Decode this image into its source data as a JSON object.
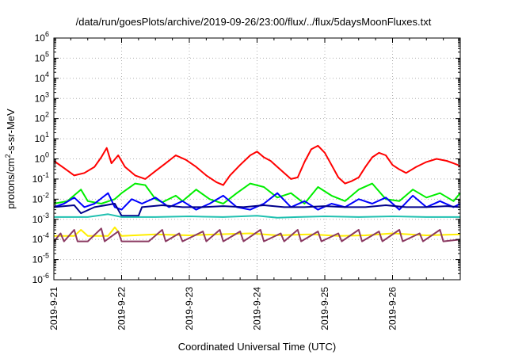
{
  "title": "/data/run/goesPlots/archive/2019-09-26/23:00/flux/../flux/5daysMoonFluxes.txt",
  "chart_data": {
    "type": "line",
    "title": "/data/run/goesPlots/archive/2019-09-26/23:00/flux/../flux/5daysMoonFluxes.txt",
    "xlabel": "Coordinated Universal Time (UTC)",
    "ylabel": {
      "prefix": "protons/cm",
      "sup": "2",
      "suffix": "-s-sr-MeV"
    },
    "y_scale": "log",
    "ylim": [
      1e-06,
      1000000.0
    ],
    "y_tick_exponents": [
      -6,
      -5,
      -4,
      -3,
      -2,
      -1,
      0,
      1,
      2,
      3,
      4,
      5,
      6
    ],
    "y_tick_base": "10",
    "xlim": [
      "2019-09-21",
      "2019-09-27"
    ],
    "x_tick_labels": [
      "2019-9-21",
      "2019-9-22",
      "2019-9-23",
      "2019-9-24",
      "2019-9-25",
      "2019-9-26"
    ],
    "grid": true,
    "series": [
      {
        "color": "#ff0000",
        "points": [
          [
            0.0,
            0.8
          ],
          [
            0.15,
            0.35
          ],
          [
            0.3,
            0.15
          ],
          [
            0.45,
            0.2
          ],
          [
            0.6,
            0.4
          ],
          [
            0.7,
            1.2
          ],
          [
            0.78,
            3.5
          ],
          [
            0.85,
            0.6
          ],
          [
            0.95,
            1.5
          ],
          [
            1.05,
            0.4
          ],
          [
            1.2,
            0.15
          ],
          [
            1.35,
            0.1
          ],
          [
            1.5,
            0.25
          ],
          [
            1.65,
            0.6
          ],
          [
            1.8,
            1.5
          ],
          [
            1.95,
            0.9
          ],
          [
            2.1,
            0.4
          ],
          [
            2.25,
            0.15
          ],
          [
            2.4,
            0.07
          ],
          [
            2.5,
            0.05
          ],
          [
            2.6,
            0.15
          ],
          [
            2.75,
            0.5
          ],
          [
            2.9,
            1.5
          ],
          [
            3.0,
            2.3
          ],
          [
            3.1,
            1.2
          ],
          [
            3.2,
            0.8
          ],
          [
            3.3,
            0.4
          ],
          [
            3.4,
            0.2
          ],
          [
            3.5,
            0.1
          ],
          [
            3.6,
            0.12
          ],
          [
            3.7,
            0.7
          ],
          [
            3.8,
            3.0
          ],
          [
            3.9,
            4.5
          ],
          [
            4.0,
            2.0
          ],
          [
            4.1,
            0.5
          ],
          [
            4.2,
            0.12
          ],
          [
            4.3,
            0.06
          ],
          [
            4.4,
            0.08
          ],
          [
            4.5,
            0.12
          ],
          [
            4.6,
            0.4
          ],
          [
            4.7,
            1.2
          ],
          [
            4.8,
            2.0
          ],
          [
            4.9,
            1.5
          ],
          [
            5.0,
            0.5
          ],
          [
            5.1,
            0.3
          ],
          [
            5.2,
            0.2
          ],
          [
            5.35,
            0.4
          ],
          [
            5.5,
            0.7
          ],
          [
            5.65,
            1.0
          ],
          [
            5.8,
            0.8
          ],
          [
            5.9,
            0.6
          ],
          [
            6.0,
            0.45
          ]
        ]
      },
      {
        "color": "#00ee00",
        "points": [
          [
            0.0,
            0.006
          ],
          [
            0.2,
            0.008
          ],
          [
            0.4,
            0.03
          ],
          [
            0.5,
            0.008
          ],
          [
            0.7,
            0.006
          ],
          [
            0.9,
            0.01
          ],
          [
            1.0,
            0.02
          ],
          [
            1.2,
            0.06
          ],
          [
            1.35,
            0.05
          ],
          [
            1.5,
            0.01
          ],
          [
            1.6,
            0.007
          ],
          [
            1.8,
            0.015
          ],
          [
            1.9,
            0.008
          ],
          [
            2.1,
            0.03
          ],
          [
            2.3,
            0.01
          ],
          [
            2.5,
            0.006
          ],
          [
            2.7,
            0.02
          ],
          [
            2.9,
            0.06
          ],
          [
            3.1,
            0.04
          ],
          [
            3.3,
            0.012
          ],
          [
            3.5,
            0.02
          ],
          [
            3.7,
            0.006
          ],
          [
            3.9,
            0.04
          ],
          [
            4.1,
            0.015
          ],
          [
            4.3,
            0.008
          ],
          [
            4.5,
            0.03
          ],
          [
            4.7,
            0.06
          ],
          [
            4.9,
            0.01
          ],
          [
            5.1,
            0.008
          ],
          [
            5.3,
            0.03
          ],
          [
            5.5,
            0.012
          ],
          [
            5.7,
            0.02
          ],
          [
            5.9,
            0.008
          ],
          [
            6.0,
            0.02
          ]
        ]
      },
      {
        "color": "#0000ff",
        "points": [
          [
            0.0,
            0.004
          ],
          [
            0.15,
            0.006
          ],
          [
            0.3,
            0.012
          ],
          [
            0.45,
            0.004
          ],
          [
            0.6,
            0.006
          ],
          [
            0.8,
            0.02
          ],
          [
            0.9,
            0.004
          ],
          [
            1.0,
            0.003
          ],
          [
            1.15,
            0.01
          ],
          [
            1.3,
            0.006
          ],
          [
            1.5,
            0.012
          ],
          [
            1.7,
            0.004
          ],
          [
            1.9,
            0.008
          ],
          [
            2.1,
            0.003
          ],
          [
            2.3,
            0.006
          ],
          [
            2.5,
            0.015
          ],
          [
            2.7,
            0.004
          ],
          [
            2.9,
            0.003
          ],
          [
            3.1,
            0.006
          ],
          [
            3.3,
            0.02
          ],
          [
            3.5,
            0.004
          ],
          [
            3.7,
            0.008
          ],
          [
            3.9,
            0.003
          ],
          [
            4.1,
            0.006
          ],
          [
            4.3,
            0.004
          ],
          [
            4.5,
            0.01
          ],
          [
            4.7,
            0.006
          ],
          [
            4.9,
            0.012
          ],
          [
            5.1,
            0.003
          ],
          [
            5.3,
            0.015
          ],
          [
            5.5,
            0.004
          ],
          [
            5.7,
            0.008
          ],
          [
            5.9,
            0.004
          ],
          [
            6.0,
            0.006
          ]
        ]
      },
      {
        "color": "#00008b",
        "points": [
          [
            0.0,
            0.004
          ],
          [
            0.3,
            0.005
          ],
          [
            0.4,
            0.002
          ],
          [
            0.6,
            0.004
          ],
          [
            0.9,
            0.006
          ],
          [
            1.0,
            0.0015
          ],
          [
            1.25,
            0.0015
          ],
          [
            1.3,
            0.004
          ],
          [
            1.6,
            0.005
          ],
          [
            1.9,
            0.004
          ],
          [
            2.2,
            0.004
          ],
          [
            2.5,
            0.0045
          ],
          [
            2.8,
            0.004
          ],
          [
            3.1,
            0.005
          ],
          [
            3.4,
            0.004
          ],
          [
            3.7,
            0.004
          ],
          [
            4.0,
            0.0045
          ],
          [
            4.3,
            0.004
          ],
          [
            4.6,
            0.004
          ],
          [
            4.9,
            0.005
          ],
          [
            5.2,
            0.004
          ],
          [
            5.5,
            0.004
          ],
          [
            5.8,
            0.0045
          ],
          [
            6.0,
            0.004
          ]
        ]
      },
      {
        "color": "#20c0b0",
        "points": [
          [
            0.0,
            0.0013
          ],
          [
            0.5,
            0.0013
          ],
          [
            0.8,
            0.0018
          ],
          [
            1.0,
            0.0013
          ],
          [
            1.5,
            0.0013
          ],
          [
            2.0,
            0.0014
          ],
          [
            2.5,
            0.0013
          ],
          [
            3.0,
            0.0015
          ],
          [
            3.3,
            0.0012
          ],
          [
            3.6,
            0.0013
          ],
          [
            4.0,
            0.0014
          ],
          [
            4.5,
            0.0013
          ],
          [
            5.0,
            0.0014
          ],
          [
            5.5,
            0.0013
          ],
          [
            6.0,
            0.0013
          ]
        ]
      },
      {
        "color": "#ffee00",
        "points": [
          [
            0.0,
            0.00015
          ],
          [
            0.3,
            0.00015
          ],
          [
            0.4,
            0.0003
          ],
          [
            0.5,
            0.00015
          ],
          [
            0.8,
            0.00015
          ],
          [
            0.9,
            0.0004
          ],
          [
            1.0,
            0.00015
          ],
          [
            1.5,
            0.00018
          ],
          [
            2.0,
            0.00016
          ],
          [
            2.4,
            0.00018
          ],
          [
            2.9,
            0.0002
          ],
          [
            3.3,
            0.00016
          ],
          [
            3.8,
            0.00018
          ],
          [
            4.2,
            0.00015
          ],
          [
            4.6,
            0.00016
          ],
          [
            5.0,
            0.0002
          ],
          [
            5.5,
            0.00016
          ],
          [
            6.0,
            0.00018
          ]
        ]
      },
      {
        "color": "#8b3a62",
        "points": [
          [
            0.0,
            8e-05
          ],
          [
            0.1,
            0.0002
          ],
          [
            0.15,
            8e-05
          ],
          [
            0.3,
            0.0003
          ],
          [
            0.35,
            8e-05
          ],
          [
            0.5,
            8e-05
          ],
          [
            0.7,
            0.00035
          ],
          [
            0.75,
            8e-05
          ],
          [
            0.95,
            0.00025
          ],
          [
            1.0,
            8e-05
          ],
          [
            1.4,
            8e-05
          ],
          [
            1.6,
            0.0003
          ],
          [
            1.65,
            8e-05
          ],
          [
            1.85,
            0.0002
          ],
          [
            1.9,
            8e-05
          ],
          [
            2.2,
            0.00025
          ],
          [
            2.25,
            8e-05
          ],
          [
            2.45,
            0.0003
          ],
          [
            2.5,
            8e-05
          ],
          [
            2.75,
            0.00025
          ],
          [
            2.8,
            8e-05
          ],
          [
            3.05,
            0.0003
          ],
          [
            3.1,
            8e-05
          ],
          [
            3.35,
            0.0002
          ],
          [
            3.4,
            8e-05
          ],
          [
            3.6,
            0.0003
          ],
          [
            3.65,
            8e-05
          ],
          [
            3.9,
            0.00025
          ],
          [
            3.95,
            8e-05
          ],
          [
            4.2,
            0.0002
          ],
          [
            4.25,
            8e-05
          ],
          [
            4.5,
            0.0003
          ],
          [
            4.55,
            8e-05
          ],
          [
            4.8,
            0.00025
          ],
          [
            4.85,
            8e-05
          ],
          [
            5.1,
            0.0003
          ],
          [
            5.15,
            8e-05
          ],
          [
            5.4,
            0.0002
          ],
          [
            5.45,
            8e-05
          ],
          [
            5.7,
            0.0003
          ],
          [
            5.75,
            8e-05
          ],
          [
            6.0,
            0.0001
          ]
        ]
      }
    ]
  }
}
